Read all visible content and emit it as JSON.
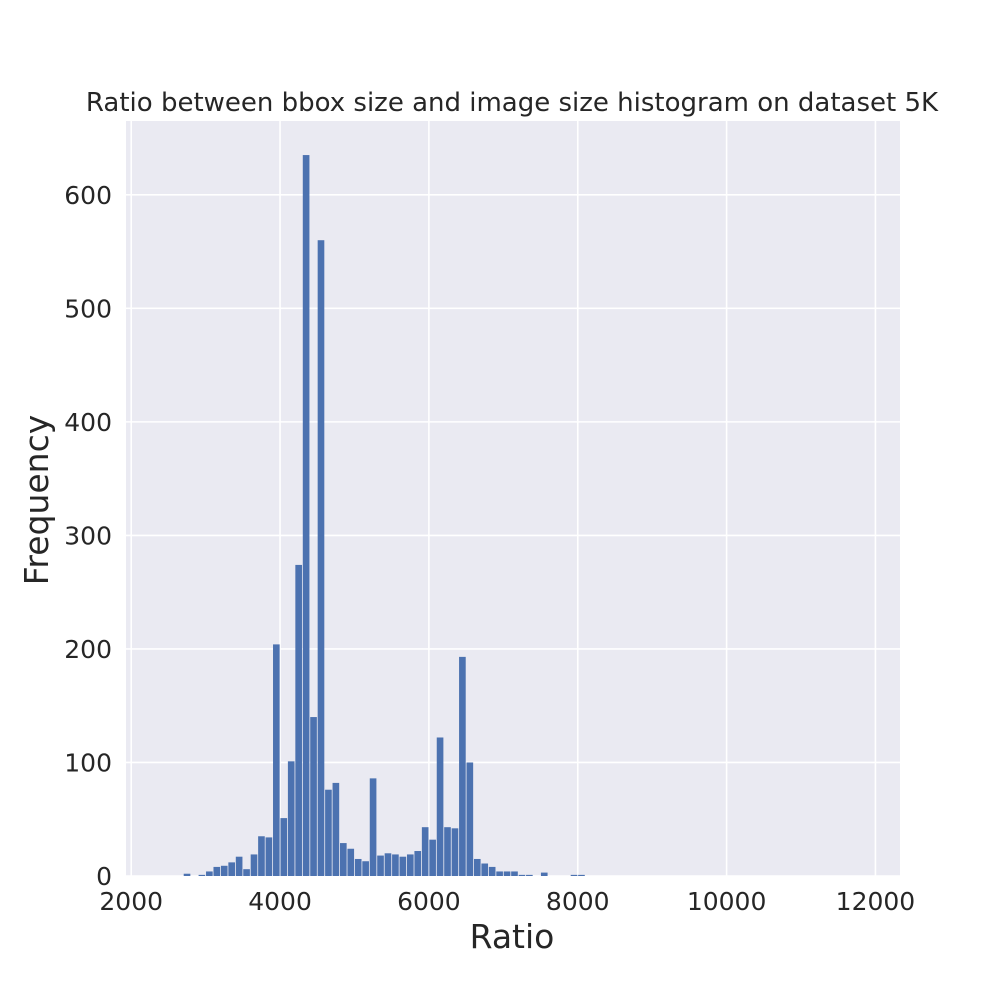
{
  "chart_data": {
    "type": "bar",
    "title": "Ratio between bbox size and image size histogram on dataset 5K",
    "xlabel": "Ratio",
    "ylabel": "Frequency",
    "xlim": [
      1930,
      12330
    ],
    "ylim": [
      0,
      665
    ],
    "xticks": [
      2000,
      4000,
      6000,
      8000,
      10000,
      12000
    ],
    "xtick_labels": [
      "2000",
      "4000",
      "6000",
      "8000",
      "10000",
      "12000"
    ],
    "yticks": [
      0,
      100,
      200,
      300,
      400,
      500,
      600
    ],
    "ytick_labels": [
      "0",
      "100",
      "200",
      "300",
      "400",
      "500",
      "600"
    ],
    "grid": true,
    "bin_width": 100,
    "series": [
      {
        "bar_color": "#4c72b0",
        "bin_starts": [
          2000,
          2100,
          2200,
          2300,
          2400,
          2500,
          2600,
          2700,
          2800,
          2900,
          3000,
          3100,
          3200,
          3300,
          3400,
          3500,
          3600,
          3700,
          3800,
          3900,
          4000,
          4100,
          4200,
          4300,
          4400,
          4500,
          4600,
          4700,
          4800,
          4900,
          5000,
          5100,
          5200,
          5300,
          5400,
          5500,
          5600,
          5700,
          5800,
          5900,
          6000,
          6100,
          6200,
          6300,
          6400,
          6500,
          6600,
          6700,
          6800,
          6900,
          7000,
          7100,
          7200,
          7300,
          7400,
          7500,
          7600,
          7700,
          7800,
          7900,
          8000
        ],
        "values": [
          0,
          0,
          0,
          0,
          0,
          0,
          0,
          2,
          0,
          1,
          4,
          8,
          9,
          12,
          17,
          6,
          19,
          35,
          34,
          204,
          51,
          101,
          274,
          635,
          140,
          560,
          76,
          82,
          29,
          24,
          15,
          13,
          86,
          18,
          20,
          19,
          17,
          19,
          22,
          43,
          32,
          122,
          43,
          42,
          193,
          100,
          15,
          11,
          8,
          4,
          4,
          4,
          1,
          1,
          0,
          3,
          0,
          0,
          0,
          1,
          1
        ]
      }
    ]
  }
}
